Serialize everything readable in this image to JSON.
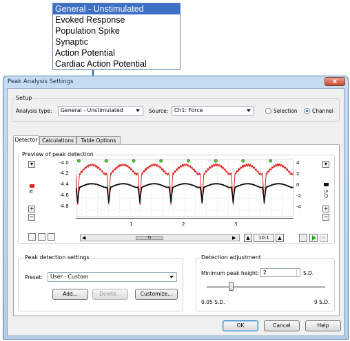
{
  "dropdown_list": {
    "options": [
      "General - Unstimulated",
      "Evoked Response",
      "Population Spike",
      "Synaptic",
      "Action Potential",
      "Cardiac Action Potential"
    ],
    "selected_index": 0
  },
  "window": {
    "title": "Peak Analysis Settings",
    "close_glyph": "x"
  },
  "setup": {
    "group_label": "Setup",
    "analysis_type_label": "Analysis type:",
    "analysis_type_value": "General - Unstimulated",
    "source_label": "Source:",
    "source_value": "Ch1: Force",
    "radio_selection": "Selection",
    "radio_channel": "Channel",
    "selected_radio": "Channel"
  },
  "tabs": [
    {
      "label": "Detector",
      "active": true
    },
    {
      "label": "Calculations",
      "active": false
    },
    {
      "label": "Table Options",
      "active": false
    }
  ],
  "preview": {
    "group_label": "Preview of peak detection",
    "left_ticks": [
      "-4.0",
      "-4.2",
      "-4.4",
      "-4.6",
      "-4.8"
    ],
    "right_ticks": [
      "4",
      "2",
      "0",
      "-2",
      "-4"
    ],
    "left_axis_label": "N",
    "right_axis_label": "S.D.",
    "x_ticks": [
      "1",
      "2",
      "3"
    ],
    "zoom_label": "10:1",
    "scroll_glyph": "III"
  },
  "chart_data": {
    "type": "line",
    "x_ticks": [
      "1",
      "2",
      "3"
    ],
    "left_axis": {
      "label": "N",
      "ticks": [
        -4.0,
        -4.2,
        -4.4,
        -4.6,
        -4.8
      ],
      "range": [
        -4.9,
        -3.95
      ]
    },
    "right_axis": {
      "label": "S.D.",
      "ticks": [
        4,
        2,
        0,
        -2,
        -4
      ],
      "range": [
        -5,
        5
      ]
    },
    "series": [
      {
        "color": "#e02020"
      },
      {
        "color": "#111111"
      }
    ],
    "peak_count": 8,
    "peak_marker_color": "#55bb33",
    "x_range": [
      0,
      3.5
    ],
    "cycle_period": 0.5,
    "red_shape": {
      "baseline": -4.2,
      "peak": -4.05,
      "trough": -4.82
    },
    "black_shape": {
      "baseline": -4.42,
      "peak": -4.36,
      "trough": -4.72
    }
  },
  "peak_settings": {
    "group_label": "Peak detection settings",
    "preset_label": "Preset:",
    "preset_value": "User - Custom",
    "add_label": "Add...",
    "delete_label": "Delete...",
    "customize_label": "Customize..."
  },
  "detection": {
    "group_label": "Detection adjustment",
    "min_height_label": "Minimum peak height:",
    "min_height_value": "2",
    "unit": "S.D.",
    "slider_min_label": "0.05 S.D.",
    "slider_max_label": "9 S.D.",
    "slider_value": 2
  },
  "footer": {
    "ok_label": "OK",
    "cancel_label": "Cancel",
    "help_label": "Help"
  },
  "colors": {
    "selection": "#3d6fc4",
    "red_trace": "#e02020",
    "black_trace": "#111111",
    "arrow": "#2c5fa3"
  }
}
